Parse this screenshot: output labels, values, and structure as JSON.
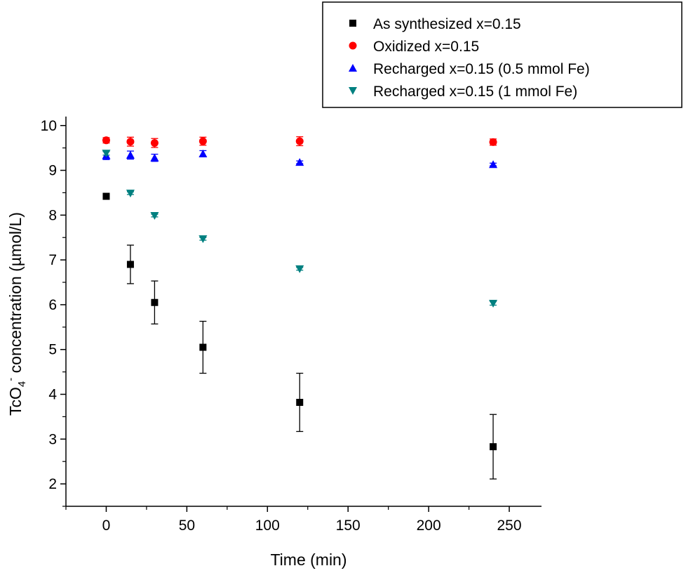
{
  "chart_data": {
    "type": "scatter",
    "title": "",
    "xlabel": "Time (min)",
    "ylabel": {
      "prefix": "TcO",
      "subscript": "4",
      "superscript": "-",
      "suffix": " concentration (µmol/L)"
    },
    "xlim": [
      -25,
      270
    ],
    "ylim": [
      1.5,
      10.2
    ],
    "xticks": [
      0,
      50,
      100,
      150,
      200,
      250
    ],
    "yticks": [
      2,
      3,
      4,
      5,
      6,
      7,
      8,
      9,
      10
    ],
    "grid": false,
    "legend_position": "top-right",
    "series": [
      {
        "name": "As synthesized x=0.15",
        "marker": "square",
        "color": "#000000",
        "x": [
          0,
          15,
          30,
          60,
          120,
          240
        ],
        "y": [
          8.42,
          6.9,
          6.05,
          5.05,
          3.82,
          2.83
        ],
        "error": [
          0,
          0.43,
          0.48,
          0.58,
          0.65,
          0.72
        ]
      },
      {
        "name": "Oxidized x=0.15",
        "marker": "circle",
        "color": "#ff0000",
        "x": [
          0,
          15,
          30,
          60,
          120,
          240
        ],
        "y": [
          9.67,
          9.64,
          9.61,
          9.65,
          9.65,
          9.63
        ],
        "error": [
          0.06,
          0.1,
          0.1,
          0.09,
          0.1,
          0.07
        ]
      },
      {
        "name": "Recharged x=0.15 (0.5 mmol Fe)",
        "marker": "triangle-up",
        "color": "#0000ff",
        "x": [
          0,
          15,
          30,
          60,
          120,
          240
        ],
        "y": [
          9.33,
          9.34,
          9.28,
          9.37,
          9.18,
          9.13
        ],
        "error": [
          0.09,
          0.09,
          0.08,
          0.07,
          0.03,
          0.03
        ]
      },
      {
        "name": "Recharged x=0.15 (1 mmol Fe)",
        "marker": "triangle-down",
        "color": "#008080",
        "x": [
          0,
          15,
          30,
          60,
          120,
          240
        ],
        "y": [
          9.38,
          8.49,
          7.99,
          7.47,
          6.8,
          6.03
        ],
        "error": [
          0.04,
          0.03,
          0.03,
          0.03,
          0.03,
          0.04
        ]
      }
    ]
  }
}
